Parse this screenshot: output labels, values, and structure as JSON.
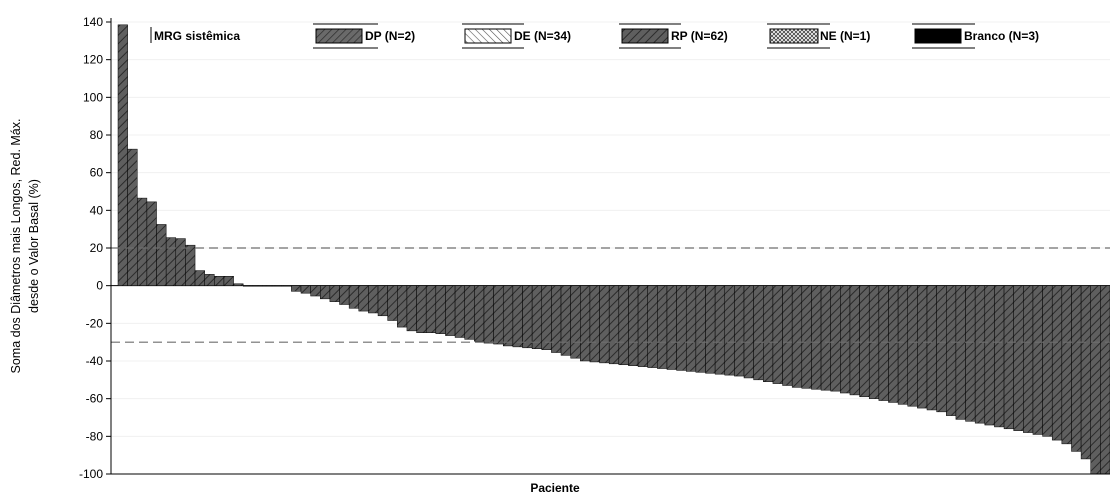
{
  "chart_data": {
    "type": "bar",
    "title": "",
    "xlabel": "Paciente",
    "ylabel_lines": [
      "Soma dos Diâmetros mais Longos, Red. Máx.",
      "desde o Valor Basal (%)"
    ],
    "ylim": [
      -100,
      140
    ],
    "yticks": [
      140,
      120,
      100,
      80,
      60,
      40,
      20,
      0,
      -20,
      -40,
      -60,
      -80,
      -100
    ],
    "reference_lines": [
      20,
      -30
    ],
    "legend_title": "MRG sistêmica",
    "legend": [
      {
        "key": "DP",
        "label": "DP (N=2)"
      },
      {
        "key": "DE",
        "label": "DE (N=34)"
      },
      {
        "key": "RP",
        "label": "RP (N=62)"
      },
      {
        "key": "NE",
        "label": "NE (N=1)"
      },
      {
        "key": "Branco",
        "label": "Branco (N=3)"
      }
    ],
    "colors": {
      "bar_fill": "#5f5f5f",
      "bar_stroke": "#000000",
      "ref_line": "#6e6e6e",
      "grid": "#f0f0f0"
    },
    "series": [
      {
        "name": "RP",
        "values": [
          138.5,
          72.5,
          46.5,
          44.5,
          32.5,
          25.5,
          25.0,
          21.5,
          8.0,
          6.0,
          5.0,
          5.0,
          1.0,
          0,
          0,
          0,
          0,
          0,
          -3.0,
          -4.0,
          -5.5,
          -7.0,
          -8.5,
          -10.0,
          -12.0,
          -13.5,
          -14.5,
          -16.0,
          -18.5,
          -22.0,
          -24.0,
          -25.0,
          -25.0,
          -25.5,
          -26.5,
          -27.5,
          -28.5,
          -29.5,
          -30.5,
          -31.0,
          -32.0,
          -32.5,
          -33.0,
          -33.5,
          -34.0,
          -35.5,
          -37.0,
          -38.5,
          -40.0,
          -40.5,
          -41.0,
          -41.5,
          -42.0,
          -42.5,
          -43.0,
          -43.5,
          -44.0,
          -44.5,
          -45.0,
          -45.5,
          -46.0,
          -46.5,
          -47.0,
          -47.5,
          -48.0,
          -49.0,
          -50.0,
          -51.0,
          -52.0,
          -53.0,
          -54.0,
          -54.5,
          -55.0,
          -55.5,
          -56.0,
          -57.0,
          -58.0,
          -59.0,
          -60.0,
          -61.0,
          -62.0,
          -63.0,
          -64.0,
          -65.0,
          -66.0,
          -67.0,
          -69.0,
          -71.0,
          -72.0,
          -73.0,
          -74.0,
          -75.0,
          -76.0,
          -77.0,
          -78.0,
          -79.0,
          -80.0,
          -82.0,
          -84.0,
          -88.0,
          -92.0,
          -100.0,
          -100.0
        ]
      }
    ]
  }
}
